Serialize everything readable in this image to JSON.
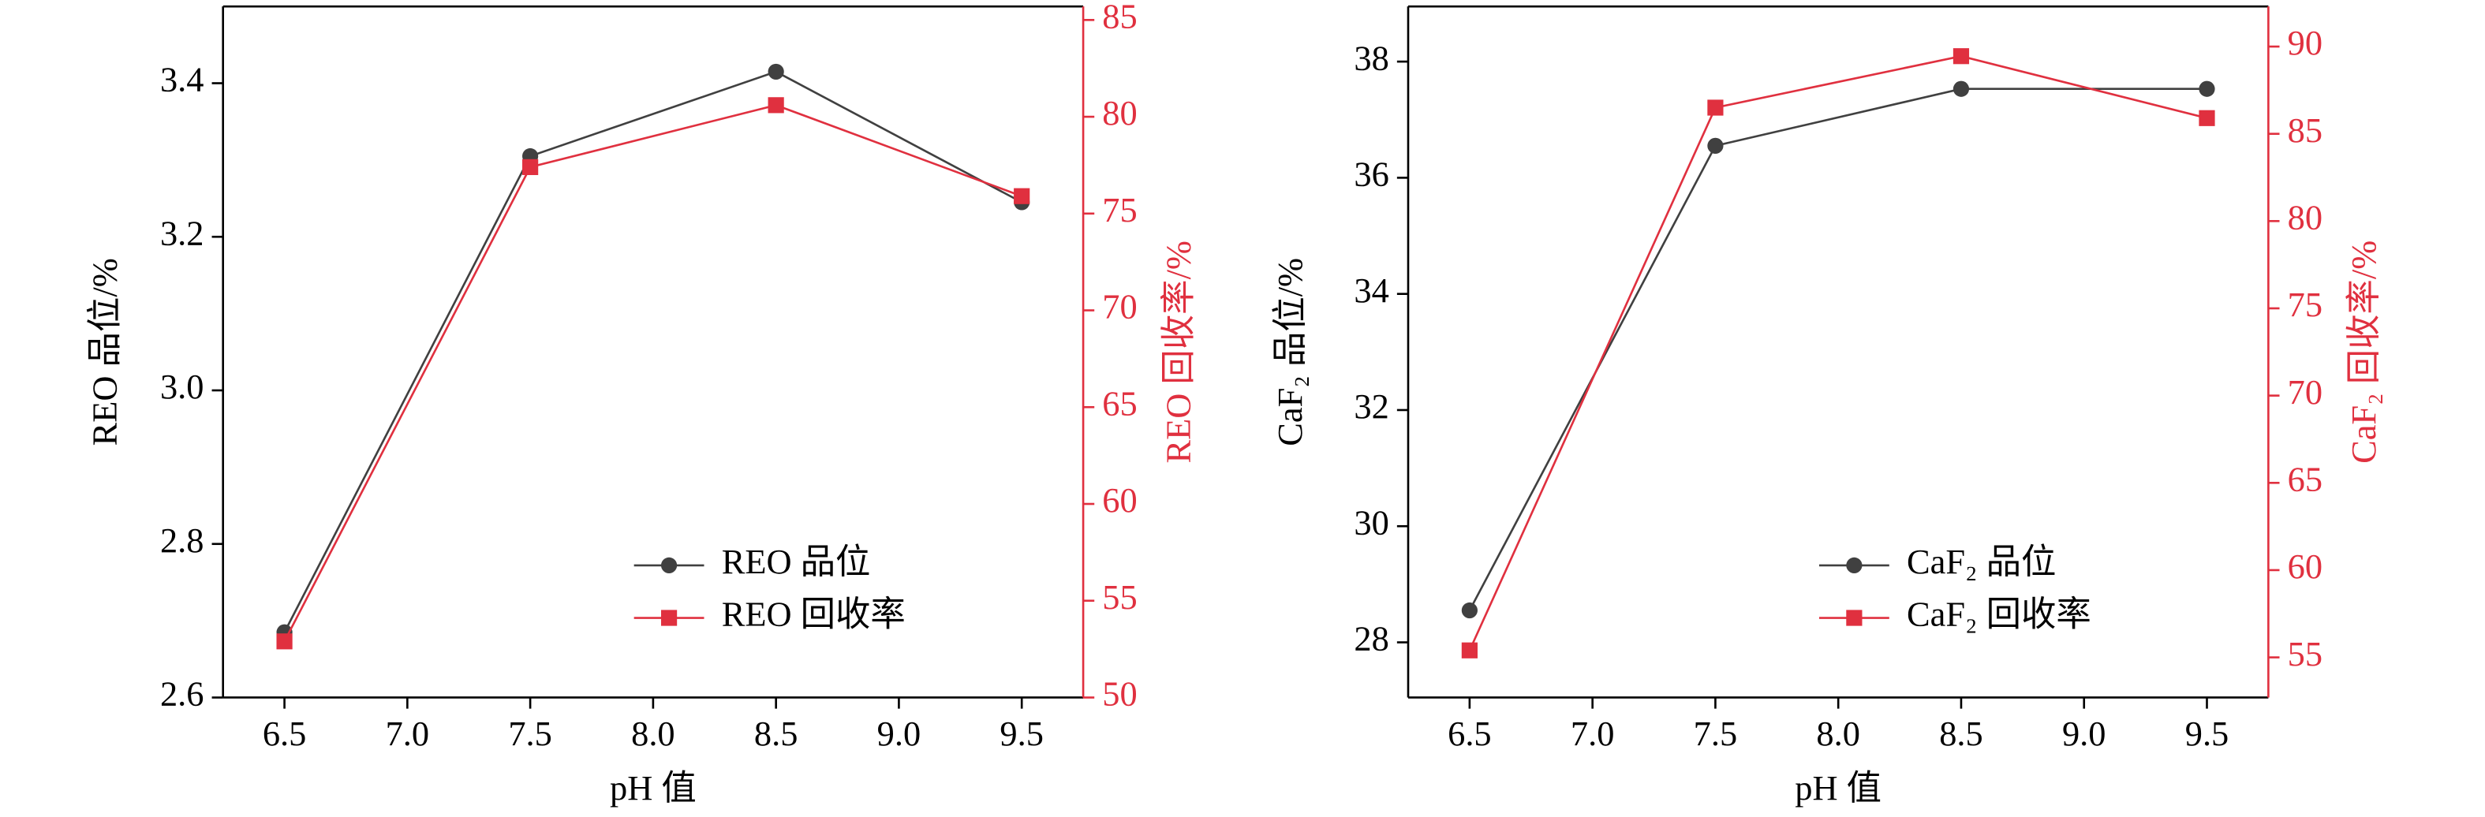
{
  "chart_data": [
    {
      "type": "line",
      "xlabel": "pH 值",
      "ylabel": "REO 品位/%",
      "y2label": "REO 回收率/%",
      "x": [
        6.5,
        7.5,
        8.5,
        9.5
      ],
      "xlim": [
        6.25,
        9.75
      ],
      "xticks": [
        6.5,
        {
          "value": 7,
          "label": "7.0"
        },
        7.5,
        {
          "value": 8,
          "label": "8.0"
        },
        8.5,
        {
          "value": 9,
          "label": "9.0"
        },
        9.5
      ],
      "ylim": [
        2.6,
        3.5
      ],
      "yticks": [
        2.6,
        2.8,
        {
          "value": 3,
          "label": "3.0"
        },
        3.2,
        3.4
      ],
      "y2lim": [
        50,
        85.7
      ],
      "y2ticks": [
        50,
        55,
        60,
        65,
        70,
        75,
        80,
        85
      ],
      "y2color": "#e0303f",
      "legend": "lower right",
      "series": [
        {
          "name": "REO 品位",
          "color": "#404040",
          "marker": "circle",
          "values": [
            2.685,
            3.305,
            3.415,
            3.245
          ]
        },
        {
          "name": "REO 回收率",
          "color": "#e0303f",
          "marker": "square",
          "axis": "y2",
          "values": [
            52.9,
            77.4,
            80.6,
            75.9
          ]
        }
      ]
    },
    {
      "type": "line",
      "xlabel": "pH 值",
      "ylabel": "CaF₂ 品位/%",
      "y2label": "CaF₂ 回收率/%",
      "x": [
        6.5,
        7.5,
        8.5,
        9.5
      ],
      "xlim": [
        6.25,
        9.75
      ],
      "xticks": [
        6.5,
        {
          "value": 7,
          "label": "7.0"
        },
        7.5,
        {
          "value": 8,
          "label": "8.0"
        },
        8.5,
        {
          "value": 9,
          "label": "9.0"
        },
        9.5
      ],
      "ylim": [
        27.05,
        38.95
      ],
      "yticks": [
        28,
        30,
        32,
        34,
        36,
        38
      ],
      "y2lim": [
        52.7,
        92.3
      ],
      "y2ticks": [
        55,
        60,
        65,
        70,
        75,
        80,
        85,
        90
      ],
      "y2color": "#e0303f",
      "legend": "lower right",
      "series": [
        {
          "name": "CaF₂ 品位",
          "color": "#404040",
          "marker": "circle",
          "values": [
            28.55,
            36.55,
            37.53,
            37.53
          ]
        },
        {
          "name": "CaF₂ 回收率",
          "color": "#e0303f",
          "marker": "square",
          "axis": "y2",
          "values": [
            55.4,
            86.5,
            89.45,
            85.9
          ]
        }
      ]
    }
  ]
}
